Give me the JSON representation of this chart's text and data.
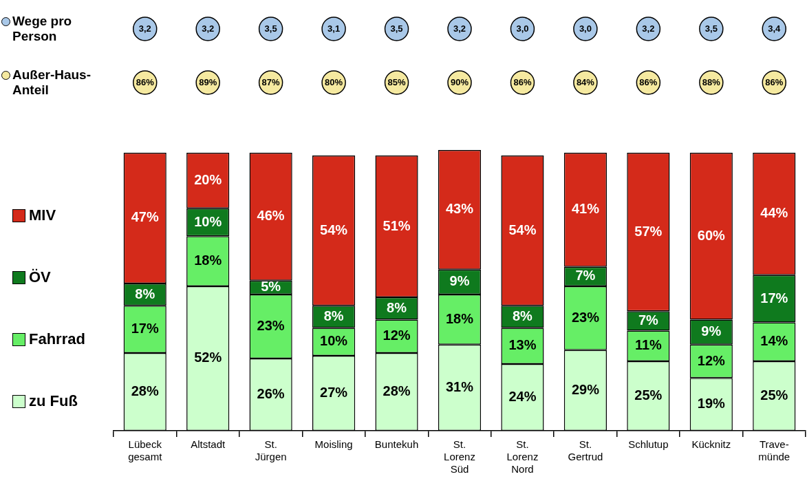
{
  "chart_data": {
    "type": "bar",
    "stacked": true,
    "legend": "left",
    "tick_labels": "x",
    "grid": false,
    "categories": [
      "Lübeck\ngesamt",
      "Altstadt",
      "St.\nJürgen",
      "Moisling",
      "Buntekuh",
      "St.\nLorenz\nSüd",
      "St.\nLorenz\nNord",
      "St.\nGertrud",
      "Schlutup",
      "Kücknitz",
      "Trave-\nmünde"
    ],
    "series": [
      {
        "name": "zu Fuß",
        "color": "#ccffcc",
        "values": [
          28,
          52,
          26,
          27,
          28,
          31,
          24,
          29,
          25,
          19,
          25
        ],
        "value_labels": [
          "28%",
          "52%",
          "26%",
          "27%",
          "28%",
          "31%",
          "24%",
          "29%",
          "25%",
          "19%",
          "25%"
        ]
      },
      {
        "name": "Fahrrad",
        "color": "#66ee66",
        "values": [
          17,
          18,
          23,
          10,
          12,
          18,
          13,
          23,
          11,
          12,
          14
        ],
        "value_labels": [
          "17%",
          "18%",
          "23%",
          "10%",
          "12%",
          "18%",
          "13%",
          "23%",
          "11%",
          "12%",
          "14%"
        ]
      },
      {
        "name": "ÖV",
        "color": "#0f7a1e",
        "values": [
          8,
          10,
          5,
          8,
          8,
          9,
          8,
          7,
          7,
          9,
          17
        ],
        "value_labels": [
          "8%",
          "10%",
          "5%",
          "8%",
          "8%",
          "9%",
          "8%",
          "7%",
          "7%",
          "9%",
          "17%"
        ]
      },
      {
        "name": "MIV",
        "color": "#d42a1a",
        "values": [
          47,
          20,
          46,
          54,
          51,
          43,
          54,
          41,
          57,
          60,
          44
        ],
        "value_labels": [
          "47%",
          "20%",
          "46%",
          "54%",
          "51%",
          "43%",
          "54%",
          "41%",
          "57%",
          "60%",
          "44%"
        ]
      }
    ],
    "annotations": [
      "Wege pro\nPerson",
      "3,2",
      "3,2",
      "3,5",
      "3,1",
      "3,5",
      "3,2",
      "3,0",
      "3,0",
      "3,2",
      "3,5",
      "3,4",
      "Außer-Haus-\nAnteil",
      "86%",
      "89%",
      "87%",
      "80%",
      "85%",
      "90%",
      "86%",
      "84%",
      "86%",
      "88%",
      "86%"
    ]
  }
}
